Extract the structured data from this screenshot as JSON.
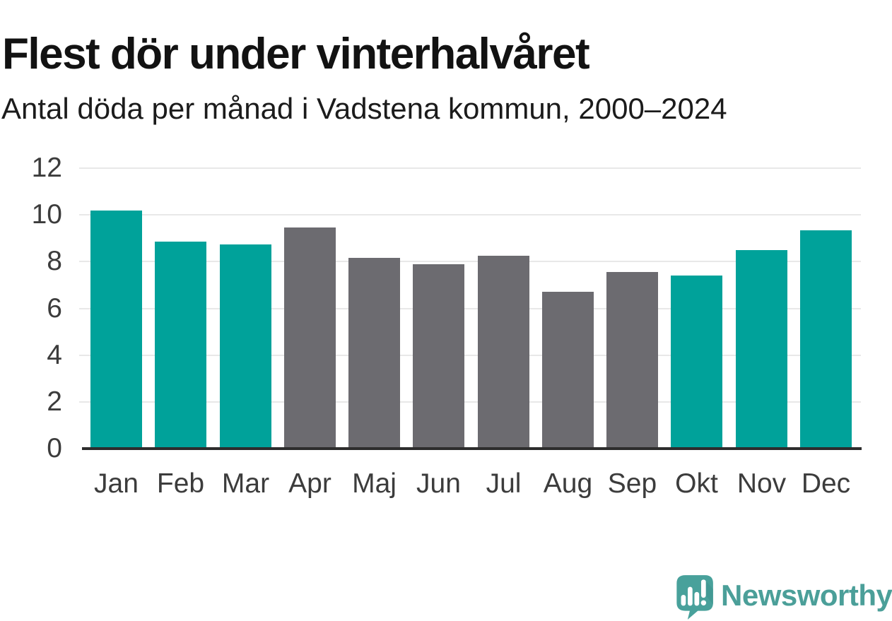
{
  "header": {
    "title": "Flest dör under vinterhalvåret",
    "subtitle": "Antal döda per månad i Vadstena kommun, 2000–2024"
  },
  "chart_data": {
    "type": "bar",
    "title": "Flest dör under vinterhalvåret",
    "subtitle": "Antal döda per månad i Vadstena kommun, 2000–2024",
    "categories": [
      "Jan",
      "Feb",
      "Mar",
      "Apr",
      "Maj",
      "Jun",
      "Jul",
      "Aug",
      "Sep",
      "Okt",
      "Nov",
      "Dec"
    ],
    "values": [
      10.2,
      8.85,
      8.75,
      9.45,
      8.15,
      7.9,
      8.25,
      6.7,
      7.55,
      7.4,
      8.5,
      9.35
    ],
    "xlabel": "",
    "ylabel": "",
    "ylim": [
      0,
      12
    ],
    "yticks": [
      0,
      2,
      4,
      6,
      8,
      10,
      12
    ],
    "grid": "horizontal",
    "legend": "none",
    "colors": {
      "winter_highlight": "#00a29a",
      "summer_muted": "#6c6b70",
      "gridline": "#e8e8e8",
      "axis": "#2d2d2d",
      "tick_label": "#3c3c3c"
    },
    "highlighted_categories": [
      "Jan",
      "Feb",
      "Mar",
      "Okt",
      "Nov",
      "Dec"
    ],
    "bar_color_keys": [
      "winter_highlight",
      "winter_highlight",
      "winter_highlight",
      "summer_muted",
      "summer_muted",
      "summer_muted",
      "summer_muted",
      "summer_muted",
      "summer_muted",
      "winter_highlight",
      "winter_highlight",
      "winter_highlight"
    ]
  },
  "branding": {
    "wordmark": "Newsworthy",
    "brand_color": "#4b9f99",
    "icon_color": "#48a19b",
    "icon_shadow_color": "#3e948e"
  }
}
